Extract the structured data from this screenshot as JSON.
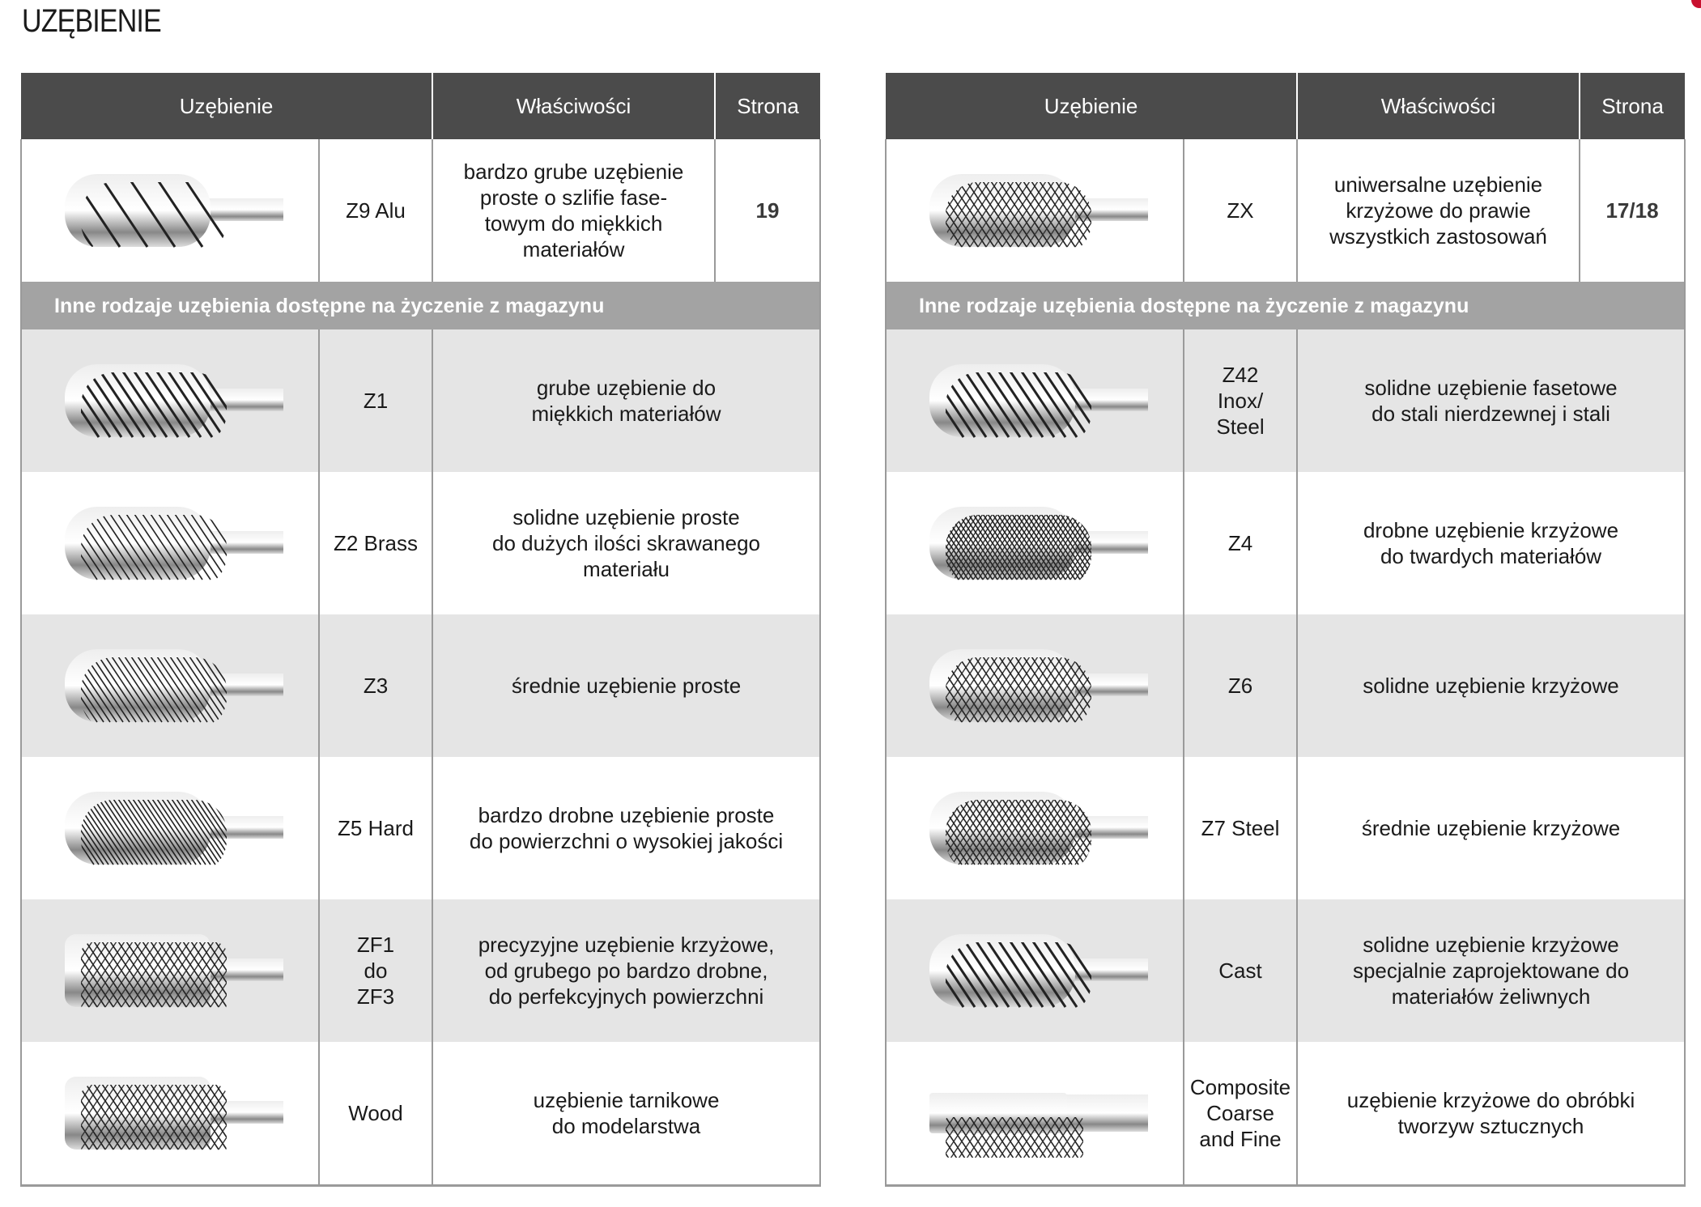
{
  "title": "UZĘBIENIE",
  "accent_color": "#c8102e",
  "header_color": "#4b4b4b",
  "subheader_color": "#a3a3a3",
  "tables": [
    {
      "headers": [
        "Uzębienie",
        "Właściwości",
        "Strona"
      ],
      "main_row": {
        "code": "Z9 Alu",
        "desc": "bardzo grube uzębienie\nproste o szlifie fase-\ntowym do miękkich\nmateriałów",
        "page": "19",
        "tooth_pattern": "spiral-alu"
      },
      "subheader": "Inne rodzaje uzębienia dostępne na życzenie z magazynu",
      "rows": [
        {
          "code": "Z1",
          "desc": "grube uzębienie do\nmiękkich materiałów",
          "tooth_pattern": "straight-coarse"
        },
        {
          "code": "Z2 Brass",
          "desc": "solidne uzębienie proste\ndo dużych ilości skrawanego\nmateriału",
          "tooth_pattern": "straight"
        },
        {
          "code": "Z3",
          "desc": "średnie uzębienie proste",
          "tooth_pattern": "straight-medium"
        },
        {
          "code": "Z5 Hard",
          "desc": "bardzo drobne uzębienie proste\ndo powierzchni o wysokiej jakości",
          "tooth_pattern": "straight-fine"
        },
        {
          "code": "ZF1\ndo\nZF3",
          "desc": "precyzyjne uzębienie krzyżowe,\nod grubego po bardzo drobne,\ndo perfekcyjnych powierzchni",
          "tooth_pattern": "cross-precise"
        },
        {
          "code": "Wood",
          "desc": "uzębienie tarnikowe\ndo modelarstwa",
          "tooth_pattern": "rasp"
        }
      ]
    },
    {
      "headers": [
        "Uzębienie",
        "Właściwości",
        "Strona"
      ],
      "main_row": {
        "code": "ZX",
        "desc": "uniwersalne uzębienie\nkrzyżowe do prawie\nwszystkich zastosowań",
        "page": "17/18",
        "tooth_pattern": "cross"
      },
      "subheader": "Inne rodzaje uzębienia dostępne na życzenie z magazynu",
      "rows": [
        {
          "code": "Z42\nInox/\nSteel",
          "desc": "solidne uzębienie fasetowe\ndo stali nierdzewnej i stali",
          "tooth_pattern": "straight-coarse"
        },
        {
          "code": "Z4",
          "desc": "drobne uzębienie krzyżowe\ndo twardych materiałów",
          "tooth_pattern": "cross-fine"
        },
        {
          "code": "Z6",
          "desc": "solidne uzębienie krzyżowe",
          "tooth_pattern": "cross"
        },
        {
          "code": "Z7 Steel",
          "desc": "średnie uzębienie krzyżowe",
          "tooth_pattern": "cross-medium"
        },
        {
          "code": "Cast",
          "desc": "solidne uzębienie krzyżowe\nspecjalnie zaprojektowane do\nmateriałów żeliwnych",
          "tooth_pattern": "straight-coarse"
        },
        {
          "code": "Composite\nCoarse\nand Fine",
          "desc": "uzębienie krzyżowe do obróbki\ntworzyw sztucznych",
          "tooth_pattern": "cross-composite"
        }
      ]
    }
  ]
}
